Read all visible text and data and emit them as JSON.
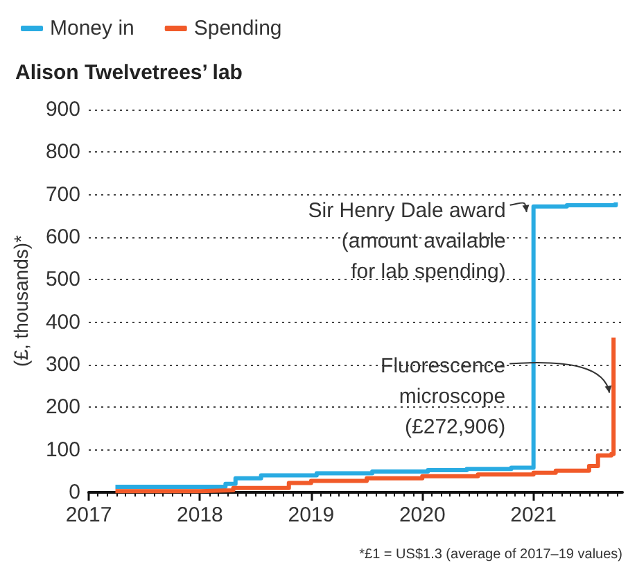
{
  "chart_data": {
    "type": "step",
    "title": "Alison Twelvetrees’ lab",
    "ylabel": "(£, thousands)*",
    "series": [
      {
        "name": "Money in",
        "color": "#29abe2",
        "x": [
          2017.24,
          2018.23,
          2018.32,
          2018.55,
          2019.05,
          2019.55,
          2020.05,
          2020.4,
          2020.8,
          2021.0,
          2021.3,
          2021.74
        ],
        "values": [
          13,
          20,
          33,
          40,
          45,
          49,
          52,
          55,
          58,
          672,
          675,
          682
        ]
      },
      {
        "name": "Spending",
        "color": "#f15a29",
        "x": [
          2017.24,
          2018.0,
          2018.3,
          2018.8,
          2019.0,
          2019.5,
          2020.0,
          2020.5,
          2021.0,
          2021.2,
          2021.5,
          2021.58,
          2021.7,
          2021.72
        ],
        "values": [
          3,
          5,
          10,
          22,
          27,
          33,
          38,
          42,
          46,
          51,
          62,
          87,
          90,
          364
        ]
      }
    ],
    "xlim": [
      2017,
      2021.8
    ],
    "xticks": [
      2017,
      2018,
      2019,
      2020,
      2021
    ],
    "ylim": [
      0,
      900
    ],
    "yticks": [
      0,
      100,
      200,
      300,
      400,
      500,
      600,
      700,
      800,
      900
    ],
    "grid": "y",
    "legend": "top left",
    "marker": "none",
    "line_style": "solid",
    "annotations": [
      {
        "text": "Sir Henry Dale award\n(amount available\nfor lab spending)",
        "x": 2021.0,
        "y": 672
      },
      {
        "text": "Fluorescence\nmicroscope\n(£272,906)",
        "x": 2021.72,
        "y": 234
      },
      "*£1 = US$1.3 (average of 2017–19 values)"
    ]
  }
}
